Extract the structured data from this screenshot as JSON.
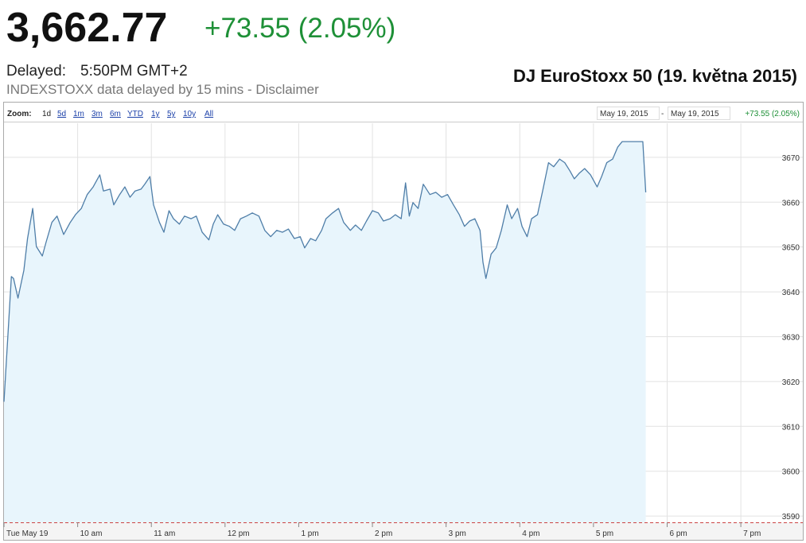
{
  "quote": {
    "price": "3,662.77",
    "change": "+73.55 (2.05%)",
    "delayed_label": "Delayed:",
    "delayed_time": "5:50PM GMT+2",
    "source_note": "INDEXSTOXX data delayed by 15 mins - Disclaimer"
  },
  "toolbar": {
    "zoom_label": "Zoom:",
    "zoom_options": [
      "1d",
      "5d",
      "1m",
      "3m",
      "6m",
      "YTD",
      "1y",
      "5y",
      "10y",
      "All"
    ],
    "range_start": "May 19, 2015",
    "range_separator": "-",
    "range_end": "May 19, 2015",
    "change": "+73.55 (2.05%)"
  },
  "chart_data": {
    "type": "area",
    "title": "DJ EuroStoxx 50 (19. května 2015)",
    "color": "#4f7ea8",
    "fill_color": "#e8f5fc",
    "grid": true,
    "x": [
      9.0,
      9.1,
      9.13,
      9.19,
      9.27,
      9.32,
      9.39,
      9.44,
      9.52,
      9.57,
      9.65,
      9.72,
      9.81,
      9.9,
      9.97,
      10.05,
      10.13,
      10.21,
      10.3,
      10.35,
      10.44,
      10.49,
      10.57,
      10.64,
      10.71,
      10.78,
      10.86,
      10.91,
      10.98,
      11.03,
      11.11,
      11.17,
      11.24,
      11.3,
      11.38,
      11.45,
      11.54,
      11.61,
      11.69,
      11.78,
      11.84,
      11.9,
      11.98,
      12.06,
      12.13,
      12.21,
      12.29,
      12.37,
      12.46,
      12.54,
      12.62,
      12.7,
      12.78,
      12.86,
      12.94,
      13.02,
      13.08,
      13.16,
      13.23,
      13.31,
      13.37,
      13.46,
      13.54,
      13.61,
      13.7,
      13.77,
      13.85,
      13.92,
      14.0,
      14.08,
      14.15,
      14.24,
      14.31,
      14.39,
      14.45,
      14.5,
      14.55,
      14.62,
      14.69,
      14.78,
      14.86,
      14.94,
      15.02,
      15.1,
      15.18,
      15.25,
      15.32,
      15.39,
      15.46,
      15.5,
      15.54,
      15.61,
      15.68,
      15.75,
      15.83,
      15.89,
      15.97,
      16.03,
      16.1,
      16.16,
      16.24,
      16.31,
      16.39,
      16.46,
      16.54,
      16.61,
      16.68,
      16.74,
      16.81,
      16.88,
      16.96,
      17.05,
      17.11,
      17.18,
      17.26,
      17.33,
      17.39,
      17.67,
      17.71
    ],
    "values": [
      3615.5,
      3643.4,
      3643.0,
      3638.6,
      3644.8,
      3651.9,
      3658.6,
      3650.1,
      3648.0,
      3651.0,
      3655.5,
      3656.9,
      3652.8,
      3655.5,
      3657.2,
      3658.6,
      3661.7,
      3663.4,
      3666.1,
      3662.5,
      3662.9,
      3659.4,
      3661.7,
      3663.4,
      3661.1,
      3662.5,
      3662.9,
      3664.0,
      3665.7,
      3659.4,
      3655.5,
      3653.3,
      3658.1,
      3656.3,
      3655.1,
      3656.9,
      3656.3,
      3656.9,
      3653.3,
      3651.6,
      3655.1,
      3657.2,
      3655.1,
      3654.6,
      3653.7,
      3656.3,
      3656.9,
      3657.6,
      3656.9,
      3653.7,
      3652.3,
      3653.7,
      3653.3,
      3654.0,
      3651.9,
      3652.3,
      3649.8,
      3651.9,
      3651.4,
      3653.7,
      3656.3,
      3657.6,
      3658.6,
      3655.5,
      3653.7,
      3654.9,
      3653.7,
      3655.8,
      3658.1,
      3657.6,
      3655.8,
      3656.3,
      3657.2,
      3656.3,
      3664.3,
      3656.9,
      3659.9,
      3658.6,
      3664.0,
      3661.7,
      3662.2,
      3661.1,
      3661.7,
      3659.4,
      3657.2,
      3654.6,
      3655.8,
      3656.3,
      3653.7,
      3646.6,
      3643.0,
      3648.4,
      3649.8,
      3653.7,
      3659.4,
      3656.3,
      3658.6,
      3654.6,
      3652.3,
      3656.3,
      3657.2,
      3662.5,
      3668.8,
      3667.9,
      3669.6,
      3668.8,
      3667.0,
      3665.2,
      3666.5,
      3667.5,
      3666.1,
      3663.4,
      3665.7,
      3668.8,
      3669.6,
      3672.3,
      3673.5,
      3673.5,
      3662.2
    ],
    "xlim": [
      9,
      19.42
    ],
    "xticks": [
      {
        "value": 9,
        "label": "Tue May 19"
      },
      {
        "value": 10,
        "label": "10 am"
      },
      {
        "value": 11,
        "label": "11 am"
      },
      {
        "value": 12,
        "label": "12 pm"
      },
      {
        "value": 13,
        "label": "1 pm"
      },
      {
        "value": 14,
        "label": "2 pm"
      },
      {
        "value": 15,
        "label": "3 pm"
      },
      {
        "value": 16,
        "label": "4 pm"
      },
      {
        "value": 17,
        "label": "5 pm"
      },
      {
        "value": 18,
        "label": "6 pm"
      },
      {
        "value": 19,
        "label": "7 pm"
      }
    ],
    "ylim": [
      3588.6,
      3677.6
    ],
    "yticks": [
      3590,
      3600,
      3610,
      3620,
      3630,
      3640,
      3650,
      3660,
      3670
    ]
  }
}
